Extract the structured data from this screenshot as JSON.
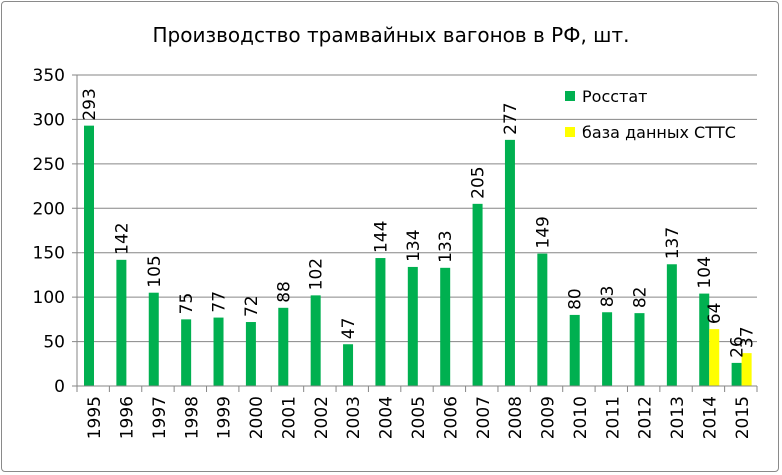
{
  "chart_data": {
    "type": "bar",
    "title": "Производство трамвайных вагонов в РФ, шт.",
    "categories": [
      "1995",
      "1996",
      "1997",
      "1998",
      "1999",
      "2000",
      "2001",
      "2002",
      "2003",
      "2004",
      "2005",
      "2006",
      "2007",
      "2008",
      "2009",
      "2010",
      "2011",
      "2012",
      "2013",
      "2014",
      "2015"
    ],
    "series": [
      {
        "name": "Росстат",
        "color": "#00b050",
        "values": [
          293,
          142,
          105,
          75,
          77,
          72,
          88,
          102,
          47,
          144,
          134,
          133,
          205,
          277,
          149,
          80,
          83,
          82,
          137,
          104,
          26
        ]
      },
      {
        "name": "база данных СТТС",
        "color": "#ffff00",
        "values": [
          null,
          null,
          null,
          null,
          null,
          null,
          null,
          null,
          null,
          null,
          null,
          null,
          null,
          null,
          null,
          null,
          null,
          null,
          null,
          64,
          37
        ]
      }
    ],
    "ylim": [
      0,
      350
    ],
    "yticks": [
      0,
      50,
      100,
      150,
      200,
      250,
      300,
      350
    ],
    "grid": true,
    "legend": "top-right",
    "data_labels": true
  }
}
